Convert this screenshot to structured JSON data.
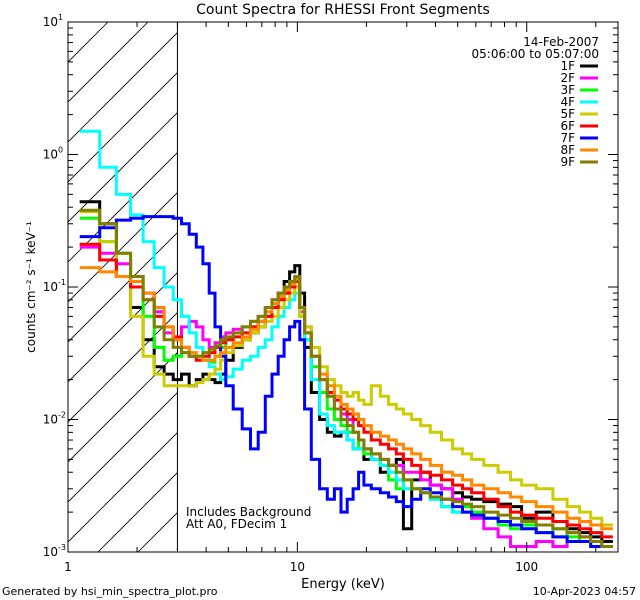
{
  "chart_data": {
    "type": "line",
    "style": "histogram-steps",
    "title": "Count Spectra for RHESSI Front Segments",
    "xlabel": "Energy (keV)",
    "ylabel": "counts cm⁻² s⁻¹ keV⁻¹",
    "xscale": "log",
    "yscale": "log",
    "xlim": [
      1,
      250
    ],
    "ylim": [
      0.001,
      10
    ],
    "x_tick_labels": [
      {
        "value": 1,
        "label": "1"
      },
      {
        "value": 10,
        "label": "10"
      },
      {
        "value": 100,
        "label": "100"
      }
    ],
    "y_tick_labels": [
      {
        "exp": -3,
        "base": "10",
        "power": "-3"
      },
      {
        "exp": -2,
        "base": "10",
        "power": "-2"
      },
      {
        "exp": -1,
        "base": "10",
        "power": "-1"
      },
      {
        "exp": 0,
        "base": "10",
        "power": "0"
      },
      {
        "exp": 1,
        "base": "10",
        "power": "1"
      }
    ],
    "excluded_region": {
      "x_min": 1,
      "x_max": 3
    },
    "date": "14-Feb-2007",
    "time_range": "05:06:00 to 05:07:00",
    "annotations": [
      "Includes Background",
      "Att A0, FDecim 1"
    ],
    "energy_keV": [
      1.25,
      1.5,
      1.75,
      2.0,
      2.25,
      2.5,
      2.75,
      3.0,
      3.25,
      3.5,
      3.75,
      4.0,
      4.25,
      4.5,
      4.75,
      5.0,
      5.5,
      6.0,
      6.5,
      7.0,
      7.5,
      8.0,
      8.5,
      9.0,
      9.5,
      10.0,
      10.5,
      11.0,
      12.0,
      13.0,
      14.0,
      15.0,
      16.0,
      17.0,
      18.0,
      19.0,
      20.0,
      22.0,
      24.0,
      26.0,
      28.0,
      30.0,
      33.0,
      36.0,
      40.0,
      45.0,
      50.0,
      55.0,
      60.0,
      70.0,
      80.0,
      90.0,
      100.0,
      120.0,
      140.0,
      160.0,
      180.0,
      200.0,
      225.0
    ],
    "series": [
      {
        "name": "1F",
        "color": "#000000",
        "values": [
          0.44,
          0.3,
          0.12,
          0.07,
          0.04,
          0.025,
          0.022,
          0.02,
          0.022,
          0.018,
          0.02,
          0.022,
          0.02,
          0.019,
          0.022,
          0.028,
          0.035,
          0.04,
          0.045,
          0.05,
          0.06,
          0.07,
          0.09,
          0.11,
          0.13,
          0.145,
          0.09,
          0.035,
          0.016,
          0.01,
          0.008,
          0.0075,
          0.008,
          0.007,
          0.006,
          0.006,
          0.005,
          0.005,
          0.004,
          0.0045,
          0.005,
          0.0015,
          0.0035,
          0.004,
          0.0032,
          0.003,
          0.0028,
          0.0026,
          0.0025,
          0.0024,
          0.0023,
          0.0022,
          0.0018,
          0.002,
          0.0017,
          0.0015,
          0.0014,
          0.0013,
          0.0012
        ]
      },
      {
        "name": "2F",
        "color": "#ff00ff",
        "values": [
          0.2,
          0.18,
          0.15,
          0.12,
          0.09,
          0.065,
          0.045,
          0.04,
          0.05,
          0.055,
          0.05,
          0.04,
          0.035,
          0.038,
          0.042,
          0.045,
          0.048,
          0.05,
          0.055,
          0.06,
          0.07,
          0.08,
          0.085,
          0.1,
          0.11,
          0.12,
          0.065,
          0.05,
          0.03,
          0.02,
          0.015,
          0.012,
          0.011,
          0.01,
          0.008,
          0.007,
          0.006,
          0.0055,
          0.005,
          0.0045,
          0.0045,
          0.004,
          0.004,
          0.0035,
          0.0032,
          0.003,
          0.0025,
          0.002,
          0.0018,
          0.0015,
          0.0013,
          0.0011,
          0.0011,
          0.0012,
          0.0011,
          0.0014,
          0.0013,
          0.0012,
          0.0011
        ]
      },
      {
        "name": "3F",
        "color": "#00ff00",
        "values": [
          0.33,
          0.22,
          0.18,
          0.12,
          0.06,
          0.035,
          0.028,
          0.03,
          0.032,
          0.03,
          0.03,
          0.028,
          0.027,
          0.03,
          0.035,
          0.04,
          0.042,
          0.045,
          0.05,
          0.055,
          0.06,
          0.07,
          0.08,
          0.09,
          0.1,
          0.11,
          0.06,
          0.04,
          0.025,
          0.016,
          0.012,
          0.01,
          0.009,
          0.008,
          0.008,
          0.006,
          0.0055,
          0.005,
          0.0045,
          0.0035,
          0.003,
          0.0035,
          0.003,
          0.0028,
          0.0025,
          0.0022,
          0.002,
          0.0022,
          0.002,
          0.0018,
          0.0016,
          0.0015,
          0.0016,
          0.0014,
          0.0015,
          0.0013,
          0.0012,
          0.0011,
          0.0011
        ]
      },
      {
        "name": "4F",
        "color": "#00ffff",
        "values": [
          1.5,
          0.8,
          0.5,
          0.35,
          0.22,
          0.14,
          0.1,
          0.08,
          0.06,
          0.045,
          0.035,
          0.03,
          0.025,
          0.022,
          0.02,
          0.021,
          0.024,
          0.028,
          0.03,
          0.035,
          0.04,
          0.05,
          0.06,
          0.07,
          0.08,
          0.09,
          0.06,
          0.04,
          0.02,
          0.011,
          0.009,
          0.008,
          0.008,
          0.007,
          0.006,
          0.006,
          0.006,
          0.005,
          0.0045,
          0.004,
          0.0035,
          0.003,
          0.003,
          0.0028,
          0.0025,
          0.0022,
          0.002,
          0.002,
          0.0019,
          0.0018,
          0.0017,
          0.0016,
          0.0015,
          0.0014,
          0.0013,
          0.0012,
          0.0012,
          0.0011,
          0.0011
        ]
      },
      {
        "name": "5F",
        "color": "#cccc00",
        "values": [
          0.37,
          0.22,
          0.12,
          0.06,
          0.03,
          0.022,
          0.018,
          0.018,
          0.018,
          0.018,
          0.019,
          0.02,
          0.022,
          0.024,
          0.028,
          0.032,
          0.036,
          0.04,
          0.045,
          0.05,
          0.055,
          0.06,
          0.07,
          0.08,
          0.09,
          0.1,
          0.06,
          0.05,
          0.035,
          0.025,
          0.02,
          0.018,
          0.016,
          0.015,
          0.016,
          0.014,
          0.013,
          0.018,
          0.015,
          0.013,
          0.012,
          0.011,
          0.01,
          0.009,
          0.008,
          0.007,
          0.006,
          0.0055,
          0.005,
          0.0045,
          0.004,
          0.0035,
          0.0032,
          0.003,
          0.0025,
          0.0022,
          0.002,
          0.0018,
          0.0016
        ]
      },
      {
        "name": "6F",
        "color": "#ff0000",
        "values": [
          0.21,
          0.16,
          0.12,
          0.1,
          0.08,
          0.06,
          0.05,
          0.042,
          0.035,
          0.03,
          0.028,
          0.03,
          0.032,
          0.035,
          0.038,
          0.04,
          0.042,
          0.045,
          0.05,
          0.055,
          0.06,
          0.07,
          0.08,
          0.09,
          0.1,
          0.11,
          0.07,
          0.045,
          0.03,
          0.02,
          0.016,
          0.014,
          0.012,
          0.011,
          0.01,
          0.009,
          0.008,
          0.007,
          0.0065,
          0.006,
          0.0055,
          0.005,
          0.0045,
          0.004,
          0.0038,
          0.0035,
          0.0032,
          0.003,
          0.0028,
          0.0025,
          0.0022,
          0.002,
          0.0019,
          0.0018,
          0.0017,
          0.0016,
          0.0015,
          0.0014,
          0.0013
        ]
      },
      {
        "name": "7F",
        "color": "#0000ff",
        "values": [
          0.24,
          0.28,
          0.32,
          0.33,
          0.34,
          0.34,
          0.34,
          0.33,
          0.3,
          0.25,
          0.2,
          0.15,
          0.09,
          0.05,
          0.03,
          0.018,
          0.012,
          0.0085,
          0.006,
          0.008,
          0.015,
          0.022,
          0.03,
          0.04,
          0.05,
          0.055,
          0.04,
          0.012,
          0.005,
          0.003,
          0.0025,
          0.003,
          0.002,
          0.0025,
          0.003,
          0.004,
          0.0032,
          0.003,
          0.0028,
          0.0026,
          0.0024,
          0.0022,
          0.0025,
          0.003,
          0.0028,
          0.0025,
          0.0022,
          0.002,
          0.0019,
          0.0018,
          0.0017,
          0.0016,
          0.0015,
          0.0014,
          0.0013,
          0.0012,
          0.0012,
          0.0011,
          0.0011
        ]
      },
      {
        "name": "8F",
        "color": "#ff8800",
        "values": [
          0.14,
          0.13,
          0.12,
          0.11,
          0.09,
          0.07,
          0.05,
          0.04,
          0.035,
          0.032,
          0.03,
          0.028,
          0.028,
          0.03,
          0.032,
          0.035,
          0.038,
          0.042,
          0.048,
          0.055,
          0.065,
          0.075,
          0.085,
          0.095,
          0.105,
          0.115,
          0.07,
          0.045,
          0.03,
          0.022,
          0.018,
          0.015,
          0.013,
          0.012,
          0.011,
          0.01,
          0.009,
          0.008,
          0.0075,
          0.007,
          0.0065,
          0.006,
          0.0055,
          0.005,
          0.0045,
          0.004,
          0.0038,
          0.0035,
          0.0032,
          0.003,
          0.0028,
          0.0026,
          0.0024,
          0.0022,
          0.002,
          0.0018,
          0.0017,
          0.0016,
          0.0015
        ]
      },
      {
        "name": "9F",
        "color": "#808000",
        "values": [
          0.38,
          0.3,
          0.18,
          0.12,
          0.08,
          0.05,
          0.04,
          0.035,
          0.032,
          0.03,
          0.03,
          0.032,
          0.034,
          0.036,
          0.04,
          0.042,
          0.045,
          0.05,
          0.055,
          0.06,
          0.07,
          0.08,
          0.09,
          0.1,
          0.11,
          0.12,
          0.07,
          0.045,
          0.03,
          0.02,
          0.015,
          0.012,
          0.01,
          0.009,
          0.008,
          0.007,
          0.006,
          0.0055,
          0.005,
          0.0045,
          0.004,
          0.0035,
          0.003,
          0.0028,
          0.0026,
          0.0025,
          0.0024,
          0.0023,
          0.0022,
          0.002,
          0.0019,
          0.0018,
          0.0017,
          0.0016,
          0.0015,
          0.0014,
          0.0013,
          0.0012,
          0.0011
        ]
      }
    ]
  },
  "footer": {
    "generated_by": "Generated by hsi_min_spectra_plot.pro",
    "timestamp": "10-Apr-2023 04:57"
  }
}
